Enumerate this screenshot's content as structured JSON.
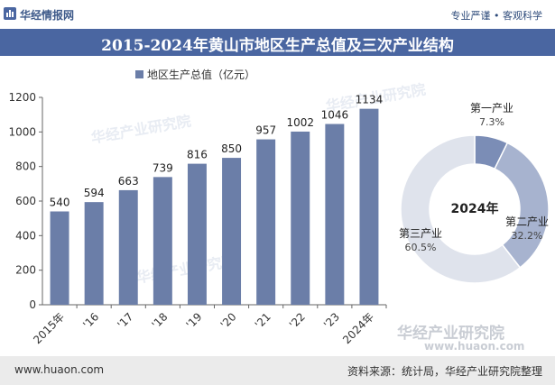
{
  "header": {
    "brand": "华经情报网",
    "tagline": "专业严谨 • 客观科学"
  },
  "title": "2015-2024年黄山市地区生产总值及三次产业结构",
  "legend": {
    "series_name": "地区生产总值（亿元）"
  },
  "watermarks": [
    "华经产业研究院",
    "www.huaon.com"
  ],
  "colors": {
    "bar": "#6b7ea8",
    "title_bg": "#4a66a1",
    "primary": "#7b8db6",
    "secondary": "#a7b3cf",
    "tertiary": "#dfe3ec"
  },
  "chart_data": [
    {
      "type": "bar",
      "categories": [
        "2015年",
        "'16",
        "'17",
        "'18",
        "'19",
        "'20",
        "'21",
        "'22",
        "'23",
        "2024年"
      ],
      "series": [
        {
          "name": "地区生产总值（亿元）",
          "values": [
            540,
            594,
            663,
            739,
            816,
            850,
            957,
            1002,
            1046,
            1134
          ]
        }
      ],
      "ylim": [
        0,
        1200
      ],
      "yticks": [
        0,
        200,
        400,
        600,
        800,
        1000,
        1200
      ],
      "grid": false
    },
    {
      "type": "pie",
      "center_label": "2024年",
      "slices": [
        {
          "name": "第一产业",
          "value": 7.3,
          "label": "7.3%"
        },
        {
          "name": "第二产业",
          "value": 32.2,
          "label": "32.2%"
        },
        {
          "name": "第三产业",
          "value": 60.5,
          "label": "60.5%"
        }
      ]
    }
  ],
  "footer": {
    "url": "www.huaon.com",
    "source": "资料来源：统计局，华经产业研究院整理"
  }
}
